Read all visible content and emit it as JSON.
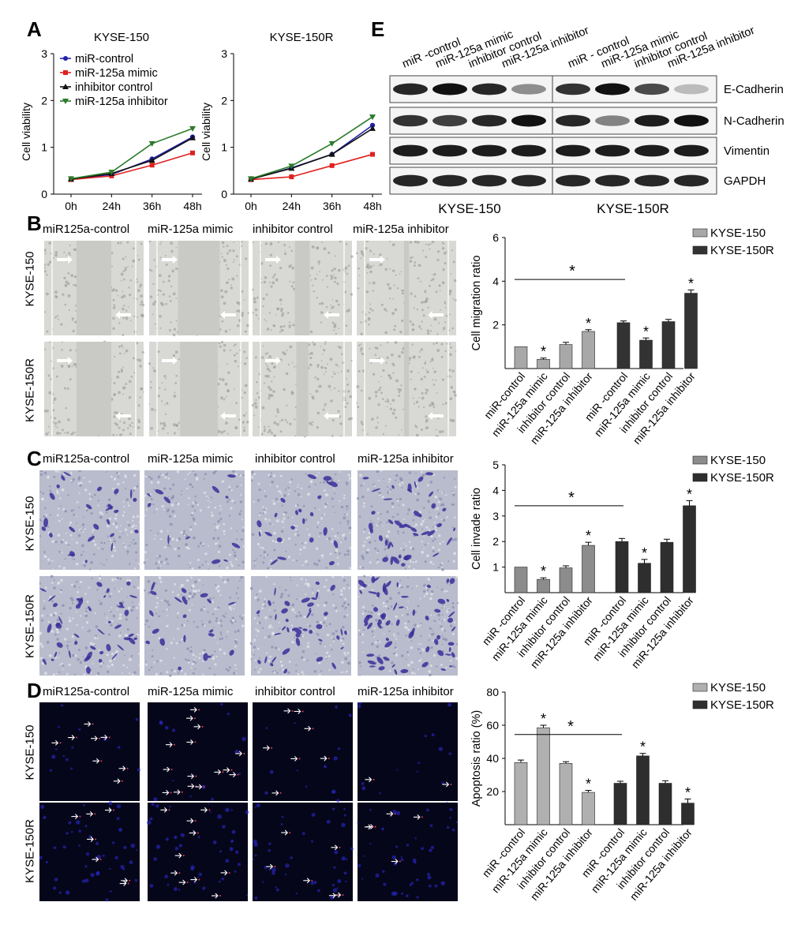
{
  "panels": {
    "A": {
      "label": "A",
      "charts": [
        {
          "title": "KYSE-150",
          "ylabel": "Cell viability",
          "x": [
            "0h",
            "24h",
            "36h",
            "48h"
          ],
          "yticks": [
            "0",
            "1",
            "2",
            "3"
          ],
          "ylim": [
            0,
            3
          ],
          "legend": [
            "miR-control",
            "miR-125a mimic",
            "inhibitor control",
            "miR-125a inhibitor"
          ]
        },
        {
          "title": "KYSE-150R",
          "ylabel": "Cell viability",
          "x": [
            "0h",
            "24h",
            "36h",
            "48h"
          ],
          "yticks": [
            "0",
            "1",
            "2",
            "3"
          ],
          "ylim": [
            0,
            3
          ]
        }
      ]
    },
    "B": {
      "label": "B",
      "columns": [
        "miR125a-control",
        "miR-125a mimic",
        "inhibitor control",
        "miR-125a inhibitor"
      ],
      "rows": [
        "KYSE-150",
        "KYSE-150R"
      ]
    },
    "C": {
      "label": "C",
      "columns": [
        "miR125a-control",
        "miR-125a mimic",
        "inhibitor control",
        "miR-125a inhibitor"
      ],
      "rows": [
        "KYSE-150",
        "KYSE-150R"
      ]
    },
    "D": {
      "label": "D",
      "columns": [
        "miR125a-control",
        "miR-125a mimic",
        "inhibitor control",
        "miR-125a inhibitor"
      ],
      "rows": [
        "KYSE-150",
        "KYSE-150R"
      ]
    },
    "E": {
      "label": "E",
      "lanes_left": [
        "miR -control",
        "miR-125a mimic",
        "inhibitor control",
        "miR-125a inhibitor"
      ],
      "lanes_right": [
        "miR - control",
        "miR-125a mimic",
        "inhibitor control",
        "miR-125a inhibitor"
      ],
      "proteins": [
        "E-Cadherin",
        "N-Cadherin",
        "Vimentin",
        "GAPDH"
      ],
      "groups": [
        "KYSE-150",
        "KYSE-150R"
      ]
    }
  },
  "chart_data": [
    {
      "id": "A-KYSE-150",
      "type": "line",
      "title": "KYSE-150",
      "xlabel": "",
      "ylabel": "Cell viability",
      "categories": [
        "0h",
        "24h",
        "36h",
        "48h"
      ],
      "ylim": [
        0,
        3
      ],
      "series": [
        {
          "name": "miR-control",
          "color": "#2222aa",
          "marker": "circle",
          "values": [
            0.32,
            0.42,
            0.75,
            1.22
          ]
        },
        {
          "name": "miR-125a mimic",
          "color": "#e02020",
          "marker": "square",
          "values": [
            0.31,
            0.39,
            0.62,
            0.88
          ]
        },
        {
          "name": "inhibitor control",
          "color": "#111111",
          "marker": "triangle",
          "values": [
            0.32,
            0.44,
            0.72,
            1.2
          ]
        },
        {
          "name": "miR-125a inhibitor",
          "color": "#2a7a2a",
          "marker": "triangle-down",
          "values": [
            0.33,
            0.47,
            1.08,
            1.4
          ]
        }
      ]
    },
    {
      "id": "A-KYSE-150R",
      "type": "line",
      "title": "KYSE-150R",
      "xlabel": "",
      "ylabel": "Cell viability",
      "categories": [
        "0h",
        "24h",
        "36h",
        "48h"
      ],
      "ylim": [
        0,
        3
      ],
      "series": [
        {
          "name": "miR-control",
          "color": "#2222aa",
          "marker": "circle",
          "values": [
            0.32,
            0.56,
            0.85,
            1.47
          ]
        },
        {
          "name": "miR-125a mimic",
          "color": "#e02020",
          "marker": "square",
          "values": [
            0.31,
            0.37,
            0.61,
            0.85
          ]
        },
        {
          "name": "inhibitor control",
          "color": "#111111",
          "marker": "triangle",
          "values": [
            0.32,
            0.55,
            0.85,
            1.4
          ]
        },
        {
          "name": "miR-125a inhibitor",
          "color": "#2a7a2a",
          "marker": "triangle-down",
          "values": [
            0.33,
            0.6,
            1.08,
            1.65
          ]
        }
      ]
    },
    {
      "id": "B-bar",
      "type": "bar",
      "ylabel": "Cell migration ratio",
      "yticks": [
        "2",
        "4",
        "6"
      ],
      "ylim": [
        0,
        6
      ],
      "categories": [
        "miR-control",
        "miR-125a mimic",
        "inhibitor control",
        "miR-125a inhibitor",
        "miR -control",
        "miR-125a mimic",
        "inhibitor control",
        "miR-125a inhibitor"
      ],
      "values": [
        1.0,
        0.42,
        1.1,
        1.7,
        2.1,
        1.3,
        2.15,
        3.45
      ],
      "errors": [
        0,
        0.06,
        0.1,
        0.08,
        0.08,
        0.1,
        0.1,
        0.15
      ],
      "groups": [
        0,
        0,
        0,
        0,
        1,
        1,
        1,
        1
      ],
      "star": [
        false,
        true,
        false,
        true,
        false,
        true,
        false,
        true
      ],
      "legend": [
        "KYSE-150",
        "KYSE-150R"
      ],
      "colors": [
        "#a8a8a8",
        "#333333"
      ],
      "bracket_label": "*"
    },
    {
      "id": "C-bar",
      "type": "bar",
      "ylabel": "Cell invade ratio",
      "yticks": [
        "1",
        "2",
        "3",
        "4",
        "5"
      ],
      "ylim": [
        0,
        5
      ],
      "categories": [
        "miR -control",
        "miR-125a mimic",
        "inhibitor control",
        "miR-125a inhibitor",
        "miR -control",
        "miR-125a mimic",
        "inhibitor control",
        "miR-125a inhibitor"
      ],
      "values": [
        1.0,
        0.52,
        0.97,
        1.85,
        2.0,
        1.15,
        1.97,
        3.4
      ],
      "errors": [
        0,
        0.06,
        0.08,
        0.12,
        0.12,
        0.15,
        0.12,
        0.2
      ],
      "groups": [
        0,
        0,
        0,
        0,
        1,
        1,
        1,
        1
      ],
      "star": [
        false,
        true,
        false,
        true,
        false,
        true,
        false,
        true
      ],
      "legend": [
        "KYSE-150",
        "KYSE-150R"
      ],
      "colors": [
        "#8c8c8c",
        "#2e2e2e"
      ],
      "bracket_label": "*"
    },
    {
      "id": "D-bar",
      "type": "bar",
      "ylabel": "Apoptosis ratio (%)",
      "yticks": [
        "20",
        "40",
        "60",
        "80"
      ],
      "ylim": [
        0,
        80
      ],
      "categories": [
        "miR -control",
        "miR-125a mimic",
        "inhibitor control",
        "miR-125a inhibitor",
        "miR -control",
        "miR-125a mimic",
        "inhibitor control",
        "miR-125a inhibitor"
      ],
      "values": [
        37.5,
        58.5,
        37.0,
        19.5,
        25.0,
        41.5,
        25.0,
        13.0
      ],
      "errors": [
        1.5,
        1.5,
        1.0,
        1.2,
        1.2,
        1.5,
        1.5,
        2.5
      ],
      "groups": [
        0,
        0,
        0,
        0,
        1,
        1,
        1,
        1
      ],
      "star": [
        false,
        true,
        false,
        true,
        false,
        true,
        false,
        true
      ],
      "legend": [
        "KYSE-150",
        "KYSE-150R"
      ],
      "colors": [
        "#b0b0b0",
        "#2e2e2e"
      ],
      "bracket_label": "*"
    }
  ]
}
